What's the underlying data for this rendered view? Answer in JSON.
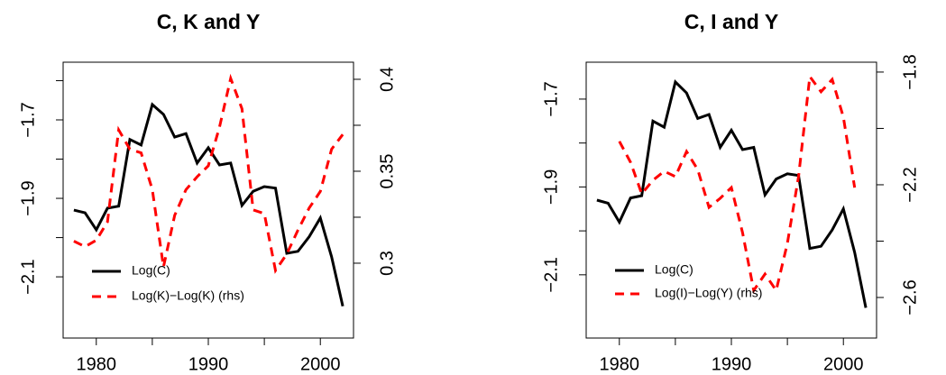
{
  "chart_data": [
    {
      "type": "line",
      "title": "C, K and Y",
      "x": [
        1978,
        1979,
        1980,
        1981,
        1982,
        1983,
        1984,
        1985,
        1986,
        1987,
        1988,
        1989,
        1990,
        1991,
        1992,
        1993,
        1994,
        1995,
        1996,
        1997,
        1998,
        1999,
        2000,
        2001,
        2002
      ],
      "series": [
        {
          "name": "Log(C)",
          "color": "#000000",
          "dash": false,
          "values": [
            -1.93,
            -1.937,
            -1.98,
            -1.925,
            -1.92,
            -1.75,
            -1.764,
            -1.661,
            -1.686,
            -1.744,
            -1.735,
            -1.81,
            -1.771,
            -1.815,
            -1.81,
            -1.918,
            -1.882,
            -1.87,
            -1.874,
            -2.04,
            -2.035,
            -1.998,
            -1.95,
            -2.049,
            -2.175
          ]
        },
        {
          "name": "Log(K)−Log(K) (rhs)",
          "color": "#ff0000",
          "dash": true,
          "axis": "y2",
          "values": [
            0.312,
            0.309,
            0.3125,
            0.3225,
            0.3725,
            0.362,
            0.36,
            0.34,
            0.298,
            0.326,
            0.34,
            0.347,
            0.353,
            0.374,
            0.4005,
            0.384,
            0.329,
            0.327,
            0.296,
            0.305,
            0.318,
            0.33,
            0.339,
            0.362,
            0.37
          ]
        }
      ],
      "xlim": [
        1977.04,
        2002.96
      ],
      "xticks": [
        1980,
        {
          "value": 1985,
          "label": null
        },
        1990,
        {
          "value": 1995,
          "label": null
        },
        2000
      ],
      "ylim": [
        -2.256,
        -1.553
      ],
      "yticks": [
        {
          "value": -1.6,
          "label": null
        },
        {
          "value": -1.7,
          "label": "−1.7"
        },
        {
          "value": -1.8,
          "label": null
        },
        {
          "value": -1.9,
          "label": "−1.9"
        },
        {
          "value": -2.0,
          "label": null
        },
        {
          "value": -2.1,
          "label": "−2.1"
        }
      ],
      "y2lim": [
        0.2593,
        0.4093
      ],
      "y2ticks": [
        0.3,
        {
          "value": 0.325,
          "label": null
        },
        0.35,
        {
          "value": 0.375,
          "label": null
        },
        0.4
      ],
      "legend": "bottom-left"
    },
    {
      "type": "line",
      "title": "C, I and Y",
      "x": [
        1978,
        1979,
        1980,
        1981,
        1982,
        1983,
        1984,
        1985,
        1986,
        1987,
        1988,
        1989,
        1990,
        1991,
        1992,
        1993,
        1994,
        1995,
        1996,
        1997,
        1998,
        1999,
        2000,
        2001,
        2002
      ],
      "series": [
        {
          "name": "Log(C)",
          "color": "#000000",
          "dash": false,
          "values": [
            -1.93,
            -1.937,
            -1.98,
            -1.925,
            -1.92,
            -1.75,
            -1.764,
            -1.661,
            -1.686,
            -1.744,
            -1.735,
            -1.81,
            -1.771,
            -1.815,
            -1.81,
            -1.918,
            -1.882,
            -1.87,
            -1.874,
            -2.04,
            -2.035,
            -1.998,
            -1.95,
            -2.049,
            -2.175
          ]
        },
        {
          "name": "Log(I)−Log(Y) (rhs)",
          "color": "#ff0000",
          "dash": true,
          "axis": "y2",
          "values": [
            null,
            null,
            -2.046,
            -2.12,
            -2.232,
            -2.184,
            -2.152,
            -2.171,
            -2.082,
            -2.146,
            -2.28,
            -2.248,
            -2.21,
            -2.37,
            -2.575,
            -2.517,
            -2.575,
            -2.408,
            -2.171,
            -1.816,
            -1.87,
            -1.826,
            -1.96,
            -2.21,
            null
          ]
        }
      ],
      "xlim": [
        1977.04,
        2002.96
      ],
      "xticks": [
        1980,
        {
          "value": 1985,
          "label": null
        },
        1990,
        {
          "value": 1995,
          "label": null
        },
        2000
      ],
      "ylim": [
        -2.244,
        -1.616
      ],
      "yticks": [
        {
          "value": -1.7,
          "label": "−1.7"
        },
        {
          "value": -1.8,
          "label": null
        },
        {
          "value": -1.9,
          "label": "−1.9"
        },
        {
          "value": -2.0,
          "label": null
        },
        {
          "value": -2.1,
          "label": "−2.1"
        }
      ],
      "y2lim": [
        -2.744,
        -1.765
      ],
      "y2ticks": [
        {
          "value": -1.8,
          "label": "−1.8"
        },
        {
          "value": -2.0,
          "label": null
        },
        {
          "value": -2.2,
          "label": "−2.2"
        },
        {
          "value": -2.4,
          "label": null
        },
        {
          "value": -2.6,
          "label": "−2.6"
        }
      ],
      "legend": "bottom-left"
    }
  ]
}
